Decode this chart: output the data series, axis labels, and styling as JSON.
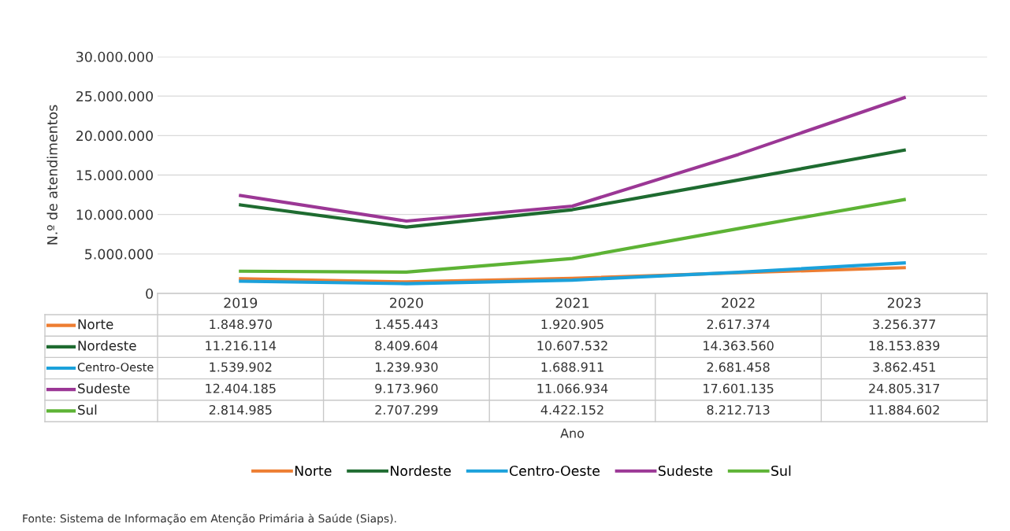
{
  "chart_data": {
    "type": "line",
    "ylabel": "N.º de atendimentos",
    "categories": [
      "2019",
      "2020",
      "2021",
      "2022",
      "2023"
    ],
    "series": [
      {
        "name": "Norte",
        "color": "#ed7d31",
        "values": [
          1848970,
          1455443,
          1920905,
          2617374,
          3256377
        ],
        "value_labels": [
          "1.848.970",
          "1.455.443",
          "1.920.905",
          "2.617.374",
          "3.256.377"
        ]
      },
      {
        "name": "Nordeste",
        "color": "#1e6b30",
        "values": [
          11216114,
          8409604,
          10607532,
          14363560,
          18153839
        ],
        "value_labels": [
          "11.216.114",
          "8.409.604",
          "10.607.532",
          "14.363.560",
          "18.153.839"
        ]
      },
      {
        "name": "Centro-Oeste",
        "color": "#1ba1db",
        "values": [
          1539902,
          1239930,
          1688911,
          2681458,
          3862451
        ],
        "value_labels": [
          "1.539.902",
          "1.239.930",
          "1.688.911",
          "2.681.458",
          "3.862.451"
        ]
      },
      {
        "name": "Sudeste",
        "color": "#9b3795",
        "values": [
          12404185,
          9173960,
          11066934,
          17601135,
          24805317
        ],
        "value_labels": [
          "12.404.185",
          "9.173.960",
          "11.066.934",
          "17.601.135",
          "24.805.317"
        ]
      },
      {
        "name": "Sul",
        "color": "#5db335",
        "values": [
          2814985,
          2707299,
          4422152,
          8212713,
          11884602
        ],
        "value_labels": [
          "2.814.985",
          "2.707.299",
          "4.422.152",
          "8.212.713",
          "11.884.602"
        ]
      }
    ],
    "ylim": [
      0,
      30000000
    ],
    "yticks": [
      {
        "value": 0,
        "label": "0"
      },
      {
        "value": 5000000,
        "label": "5.000.000"
      },
      {
        "value": 10000000,
        "label": "10.000.000"
      },
      {
        "value": 15000000,
        "label": "15.000.000"
      },
      {
        "value": 20000000,
        "label": "20.000.000"
      },
      {
        "value": 25000000,
        "label": "25.000.000"
      },
      {
        "value": 30000000,
        "label": "30.000.000"
      }
    ],
    "grid": "y",
    "legend": "bottom",
    "marker": "none",
    "line_style": "solid",
    "annotations": [
      "Ano",
      "Fonte: Sistema de Informação em Atenção Primária à Saúde (Siaps)."
    ]
  }
}
